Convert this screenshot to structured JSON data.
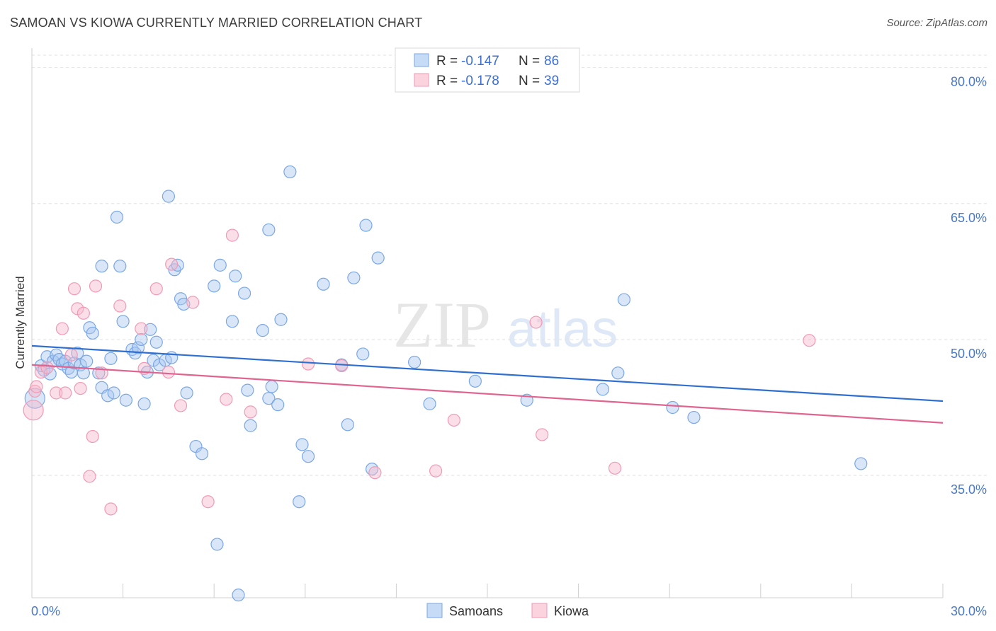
{
  "title": "SAMOAN VS KIOWA CURRENTLY MARRIED CORRELATION CHART",
  "source": "Source: ZipAtlas.com",
  "watermark": {
    "zip": "ZIP",
    "atlas": "atlas"
  },
  "legend_top": [
    {
      "r_label": "R = ",
      "r_value": "-0.147",
      "n_label": "N = ",
      "n_value": "86",
      "color": "#a9c8f0"
    },
    {
      "r_label": "R = ",
      "r_value": "-0.178",
      "n_label": "N = ",
      "n_value": "39",
      "color": "#f7b8cb"
    }
  ],
  "chart_data": {
    "type": "scatter",
    "ylabel": "Currently Married",
    "xlim": [
      0,
      30
    ],
    "ylim": [
      21.5,
      82
    ],
    "x_tick_labels": [
      "0.0%",
      "30.0%"
    ],
    "y_ticks": [
      35,
      50,
      65,
      80
    ],
    "y_tick_labels": [
      "35.0%",
      "50.0%",
      "65.0%",
      "80.0%"
    ],
    "grid": "horizontal dashed",
    "legend_placement": "top-center and bottom-center",
    "series": [
      {
        "name": "Samoans",
        "color": "#7aa7e6",
        "line_color": "#2f6fd0",
        "trend": {
          "x": [
            0,
            30
          ],
          "y": [
            49.3,
            43.2
          ]
        },
        "points": [
          [
            0.3,
            47.1
          ],
          [
            0.4,
            46.6
          ],
          [
            0.5,
            48.1
          ],
          [
            0.6,
            46.2
          ],
          [
            0.7,
            47.6
          ],
          [
            0.8,
            48.3
          ],
          [
            0.9,
            47.8
          ],
          [
            1.0,
            47.3
          ],
          [
            1.1,
            47.6
          ],
          [
            1.2,
            46.8
          ],
          [
            1.3,
            46.4
          ],
          [
            1.4,
            47.4
          ],
          [
            1.5,
            48.5
          ],
          [
            1.6,
            47.2
          ],
          [
            1.7,
            46.3
          ],
          [
            1.8,
            47.6
          ],
          [
            1.9,
            51.3
          ],
          [
            2.0,
            50.7
          ],
          [
            2.2,
            46.3
          ],
          [
            2.3,
            44.7
          ],
          [
            2.3,
            58.1
          ],
          [
            2.5,
            43.8
          ],
          [
            2.6,
            47.9
          ],
          [
            2.7,
            44.1
          ],
          [
            2.8,
            63.5
          ],
          [
            2.9,
            58.1
          ],
          [
            3.0,
            52.0
          ],
          [
            3.1,
            43.3
          ],
          [
            3.3,
            48.9
          ],
          [
            3.4,
            48.5
          ],
          [
            3.5,
            49.1
          ],
          [
            3.6,
            50.0
          ],
          [
            3.7,
            42.9
          ],
          [
            3.8,
            46.4
          ],
          [
            3.9,
            51.1
          ],
          [
            4.0,
            47.7
          ],
          [
            4.1,
            49.7
          ],
          [
            4.2,
            47.2
          ],
          [
            4.4,
            47.7
          ],
          [
            4.5,
            65.8
          ],
          [
            4.6,
            48.0
          ],
          [
            4.7,
            57.7
          ],
          [
            4.8,
            58.2
          ],
          [
            4.9,
            54.5
          ],
          [
            5.0,
            53.9
          ],
          [
            5.1,
            44.1
          ],
          [
            5.4,
            38.2
          ],
          [
            5.6,
            37.4
          ],
          [
            6.0,
            55.9
          ],
          [
            6.1,
            27.4
          ],
          [
            6.2,
            58.2
          ],
          [
            6.6,
            52.0
          ],
          [
            6.7,
            57.0
          ],
          [
            6.8,
            21.8
          ],
          [
            7.0,
            55.1
          ],
          [
            7.1,
            44.4
          ],
          [
            7.2,
            40.5
          ],
          [
            7.6,
            51.0
          ],
          [
            7.8,
            62.1
          ],
          [
            7.8,
            43.5
          ],
          [
            7.9,
            44.8
          ],
          [
            8.1,
            42.8
          ],
          [
            8.2,
            52.2
          ],
          [
            8.5,
            68.5
          ],
          [
            8.8,
            32.1
          ],
          [
            8.9,
            38.4
          ],
          [
            9.1,
            37.1
          ],
          [
            9.6,
            56.1
          ],
          [
            10.2,
            47.2
          ],
          [
            10.4,
            40.6
          ],
          [
            10.6,
            56.8
          ],
          [
            10.9,
            48.4
          ],
          [
            11.0,
            62.6
          ],
          [
            11.2,
            35.7
          ],
          [
            11.4,
            59.0
          ],
          [
            12.6,
            47.5
          ],
          [
            13.1,
            42.9
          ],
          [
            14.6,
            45.4
          ],
          [
            16.3,
            43.3
          ],
          [
            18.8,
            44.5
          ],
          [
            19.3,
            46.3
          ],
          [
            19.5,
            54.4
          ],
          [
            21.1,
            42.5
          ],
          [
            21.8,
            41.4
          ],
          [
            27.3,
            36.3
          ],
          [
            0.1,
            43.5
          ]
        ]
      },
      {
        "name": "Kiowa",
        "color": "#f29ab5",
        "line_color": "#e0648f",
        "trend": {
          "x": [
            0,
            30
          ],
          "y": [
            47.2,
            40.8
          ]
        },
        "points": [
          [
            0.1,
            44.3
          ],
          [
            0.3,
            46.4
          ],
          [
            0.5,
            46.9
          ],
          [
            0.8,
            44.1
          ],
          [
            1.0,
            51.2
          ],
          [
            1.1,
            44.1
          ],
          [
            1.3,
            48.3
          ],
          [
            1.4,
            55.6
          ],
          [
            1.5,
            53.4
          ],
          [
            1.6,
            44.6
          ],
          [
            1.7,
            52.9
          ],
          [
            1.9,
            34.9
          ],
          [
            2.0,
            39.3
          ],
          [
            2.1,
            55.9
          ],
          [
            2.3,
            46.3
          ],
          [
            2.6,
            31.3
          ],
          [
            2.9,
            53.7
          ],
          [
            3.6,
            51.2
          ],
          [
            3.7,
            46.8
          ],
          [
            4.1,
            55.6
          ],
          [
            4.5,
            46.4
          ],
          [
            4.6,
            58.3
          ],
          [
            4.9,
            42.7
          ],
          [
            5.3,
            54.1
          ],
          [
            5.8,
            32.1
          ],
          [
            6.4,
            43.4
          ],
          [
            6.6,
            61.5
          ],
          [
            7.2,
            42.0
          ],
          [
            9.1,
            47.3
          ],
          [
            10.2,
            47.1
          ],
          [
            11.3,
            35.3
          ],
          [
            13.3,
            35.5
          ],
          [
            13.9,
            41.1
          ],
          [
            16.6,
            51.9
          ],
          [
            16.8,
            39.5
          ],
          [
            19.2,
            35.8
          ],
          [
            25.6,
            49.9
          ],
          [
            0.05,
            42.2
          ],
          [
            0.15,
            44.8
          ]
        ]
      }
    ]
  }
}
